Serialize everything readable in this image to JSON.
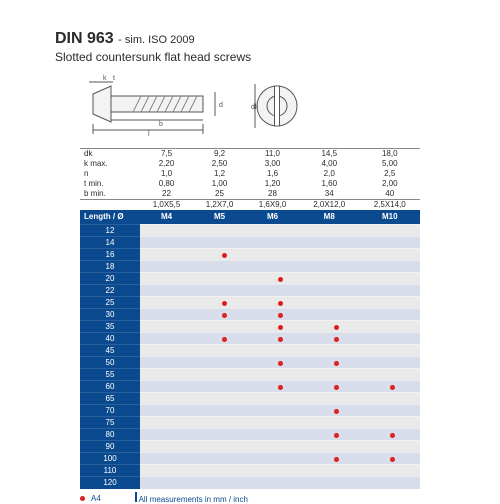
{
  "title": {
    "main": "DIN 963",
    "tail": "- sim. ISO 2009"
  },
  "subtitle": "Slotted countersunk flat head screws",
  "colors": {
    "brand": "#0b4a8f",
    "dot": "#dc1e1e",
    "row_odd": "#e9e9e9",
    "row_even": "#d8ddea",
    "stroke": "#555555"
  },
  "drawing": {
    "side": {
      "w": 150,
      "h": 60
    },
    "front": {
      "w": 52,
      "h": 52
    }
  },
  "spec": {
    "labels": [
      "dk",
      "k max.",
      "n",
      "t min.",
      "b min."
    ],
    "rows": [
      [
        "7,5",
        "9,2",
        "11,0",
        "14,5",
        "18,0"
      ],
      [
        "2,20",
        "2,50",
        "3,00",
        "4,00",
        "5,00"
      ],
      [
        "1,0",
        "1,2",
        "1,6",
        "2,0",
        "2,5"
      ],
      [
        "0,80",
        "1,00",
        "1,20",
        "1,60",
        "2,00"
      ],
      [
        "22",
        "25",
        "28",
        "34",
        "40"
      ]
    ],
    "bx": [
      "1,0X5,5",
      "1,2X7,0",
      "1,6X9,0",
      "2,0X12,0",
      "2,5X14,0"
    ],
    "header": {
      "first": "Length / Ø",
      "cols": [
        "M4",
        "M5",
        "M6",
        "M8",
        "M10"
      ]
    }
  },
  "lengths": [
    "12",
    "14",
    "16",
    "18",
    "20",
    "22",
    "25",
    "30",
    "35",
    "40",
    "45",
    "50",
    "55",
    "60",
    "65",
    "70",
    "75",
    "80",
    "90",
    "100",
    "110",
    "120"
  ],
  "dots": {
    "12": [
      0,
      0,
      0,
      0,
      0
    ],
    "14": [
      0,
      0,
      0,
      0,
      0
    ],
    "16": [
      0,
      1,
      0,
      0,
      0
    ],
    "18": [
      0,
      0,
      0,
      0,
      0
    ],
    "20": [
      0,
      0,
      1,
      0,
      0
    ],
    "22": [
      0,
      0,
      0,
      0,
      0
    ],
    "25": [
      0,
      1,
      1,
      0,
      0
    ],
    "30": [
      0,
      1,
      1,
      0,
      0
    ],
    "35": [
      0,
      0,
      1,
      1,
      0
    ],
    "40": [
      0,
      1,
      1,
      1,
      0
    ],
    "45": [
      0,
      0,
      0,
      0,
      0
    ],
    "50": [
      0,
      0,
      1,
      1,
      0
    ],
    "55": [
      0,
      0,
      0,
      0,
      0
    ],
    "60": [
      0,
      0,
      1,
      1,
      1
    ],
    "65": [
      0,
      0,
      0,
      0,
      0
    ],
    "70": [
      0,
      0,
      0,
      1,
      0
    ],
    "75": [
      0,
      0,
      0,
      0,
      0
    ],
    "80": [
      0,
      0,
      0,
      1,
      1
    ],
    "90": [
      0,
      0,
      0,
      0,
      0
    ],
    "100": [
      0,
      0,
      0,
      1,
      1
    ],
    "110": [
      0,
      0,
      0,
      0,
      0
    ],
    "120": [
      0,
      0,
      0,
      0,
      0
    ]
  },
  "legend": {
    "label": "A4",
    "note": "All measurements in mm / inch"
  }
}
